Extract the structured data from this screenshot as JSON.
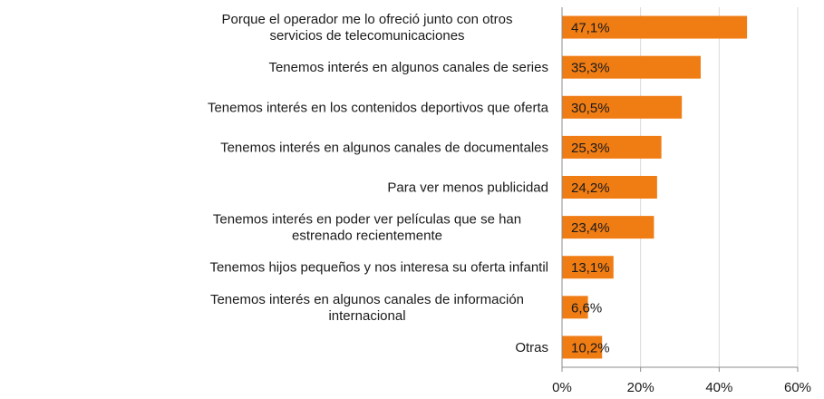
{
  "chart_data": {
    "type": "bar",
    "orientation": "horizontal",
    "categories": [
      [
        "Porque el operador me lo ofreció junto con otros",
        "servicios de telecomunicaciones"
      ],
      [
        "Tenemos interés en algunos canales de series"
      ],
      [
        "Tenemos interés en los contenidos deportivos que oferta"
      ],
      [
        "Tenemos interés en algunos canales de documentales"
      ],
      [
        "Para ver menos publicidad"
      ],
      [
        "Tenemos interés en poder ver películas que se han",
        "estrenado recientemente"
      ],
      [
        "Tenemos hijos pequeños y nos interesa su oferta infantil"
      ],
      [
        "Tenemos interés en algunos canales de información",
        "internacional"
      ],
      [
        "Otras"
      ]
    ],
    "values": [
      47.1,
      35.3,
      30.5,
      25.3,
      24.2,
      23.4,
      13.1,
      6.6,
      10.2
    ],
    "data_labels": [
      "47,1%",
      "35,3%",
      "30,5%",
      "25,3%",
      "24,2%",
      "23,4%",
      "13,1%",
      "6,6%",
      "10,2%"
    ],
    "xlim": [
      0,
      60
    ],
    "xticks": [
      0,
      20,
      40,
      60
    ],
    "xtick_labels": [
      "0%",
      "20%",
      "40%",
      "60%"
    ],
    "bar_color": "#f07c14",
    "grid": true,
    "legend": "none"
  }
}
